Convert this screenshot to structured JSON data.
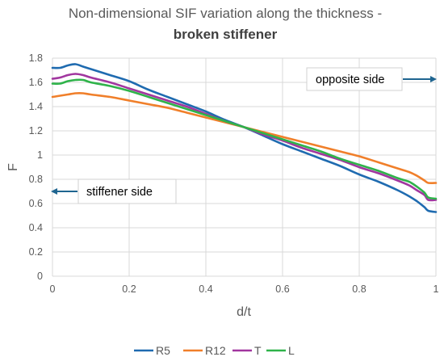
{
  "chart_data": {
    "type": "line",
    "title": "Non-dimensional SIF variation along the thickness -",
    "subtitle": "broken stiffener",
    "xlabel": "d/t",
    "ylabel": "F",
    "xlim": [
      0,
      1
    ],
    "ylim": [
      0,
      1.8
    ],
    "x_ticks": [
      "0",
      "0.2",
      "0.4",
      "0.6",
      "0.8",
      "1"
    ],
    "y_ticks": [
      "0",
      "0.2",
      "0.4",
      "0.6",
      "0.8",
      "1",
      "1.2",
      "1.4",
      "1.6",
      "1.8"
    ],
    "grid": true,
    "legend_position": "bottom",
    "series": [
      {
        "name": "R5",
        "color": "#1f6bb0",
        "points": [
          [
            0,
            1.72
          ],
          [
            0.02,
            1.72
          ],
          [
            0.04,
            1.74
          ],
          [
            0.06,
            1.75
          ],
          [
            0.08,
            1.73
          ],
          [
            0.1,
            1.71
          ],
          [
            0.15,
            1.66
          ],
          [
            0.2,
            1.61
          ],
          [
            0.25,
            1.54
          ],
          [
            0.3,
            1.48
          ],
          [
            0.35,
            1.42
          ],
          [
            0.4,
            1.36
          ],
          [
            0.45,
            1.29
          ],
          [
            0.5,
            1.23
          ],
          [
            0.55,
            1.16
          ],
          [
            0.6,
            1.09
          ],
          [
            0.65,
            1.03
          ],
          [
            0.7,
            0.97
          ],
          [
            0.75,
            0.91
          ],
          [
            0.8,
            0.84
          ],
          [
            0.85,
            0.78
          ],
          [
            0.9,
            0.71
          ],
          [
            0.93,
            0.66
          ],
          [
            0.95,
            0.62
          ],
          [
            0.97,
            0.57
          ],
          [
            0.98,
            0.54
          ],
          [
            1.0,
            0.53
          ]
        ]
      },
      {
        "name": "R12",
        "color": "#f07f2a",
        "points": [
          [
            0,
            1.48
          ],
          [
            0.02,
            1.49
          ],
          [
            0.04,
            1.5
          ],
          [
            0.06,
            1.51
          ],
          [
            0.08,
            1.51
          ],
          [
            0.1,
            1.5
          ],
          [
            0.15,
            1.48
          ],
          [
            0.2,
            1.45
          ],
          [
            0.25,
            1.42
          ],
          [
            0.3,
            1.39
          ],
          [
            0.35,
            1.35
          ],
          [
            0.4,
            1.31
          ],
          [
            0.45,
            1.27
          ],
          [
            0.5,
            1.23
          ],
          [
            0.55,
            1.19
          ],
          [
            0.6,
            1.15
          ],
          [
            0.65,
            1.11
          ],
          [
            0.7,
            1.07
          ],
          [
            0.75,
            1.03
          ],
          [
            0.8,
            0.99
          ],
          [
            0.85,
            0.94
          ],
          [
            0.9,
            0.89
          ],
          [
            0.93,
            0.86
          ],
          [
            0.95,
            0.83
          ],
          [
            0.97,
            0.79
          ],
          [
            0.98,
            0.77
          ],
          [
            1.0,
            0.77
          ]
        ]
      },
      {
        "name": "T",
        "color": "#a1369f",
        "points": [
          [
            0,
            1.63
          ],
          [
            0.02,
            1.64
          ],
          [
            0.04,
            1.66
          ],
          [
            0.06,
            1.67
          ],
          [
            0.08,
            1.66
          ],
          [
            0.1,
            1.64
          ],
          [
            0.15,
            1.6
          ],
          [
            0.2,
            1.55
          ],
          [
            0.25,
            1.5
          ],
          [
            0.3,
            1.45
          ],
          [
            0.35,
            1.4
          ],
          [
            0.4,
            1.34
          ],
          [
            0.45,
            1.28
          ],
          [
            0.5,
            1.23
          ],
          [
            0.55,
            1.17
          ],
          [
            0.6,
            1.12
          ],
          [
            0.65,
            1.06
          ],
          [
            0.7,
            1.01
          ],
          [
            0.75,
            0.96
          ],
          [
            0.8,
            0.9
          ],
          [
            0.85,
            0.85
          ],
          [
            0.9,
            0.79
          ],
          [
            0.93,
            0.75
          ],
          [
            0.95,
            0.71
          ],
          [
            0.97,
            0.67
          ],
          [
            0.98,
            0.63
          ],
          [
            1.0,
            0.63
          ]
        ]
      },
      {
        "name": "L",
        "color": "#2fb34a",
        "points": [
          [
            0,
            1.59
          ],
          [
            0.02,
            1.59
          ],
          [
            0.04,
            1.61
          ],
          [
            0.06,
            1.62
          ],
          [
            0.08,
            1.62
          ],
          [
            0.1,
            1.6
          ],
          [
            0.15,
            1.57
          ],
          [
            0.2,
            1.53
          ],
          [
            0.25,
            1.48
          ],
          [
            0.3,
            1.43
          ],
          [
            0.35,
            1.38
          ],
          [
            0.4,
            1.33
          ],
          [
            0.45,
            1.28
          ],
          [
            0.5,
            1.23
          ],
          [
            0.55,
            1.18
          ],
          [
            0.6,
            1.13
          ],
          [
            0.65,
            1.08
          ],
          [
            0.7,
            1.03
          ],
          [
            0.75,
            0.97
          ],
          [
            0.8,
            0.92
          ],
          [
            0.85,
            0.87
          ],
          [
            0.9,
            0.81
          ],
          [
            0.93,
            0.78
          ],
          [
            0.95,
            0.74
          ],
          [
            0.97,
            0.69
          ],
          [
            0.98,
            0.65
          ],
          [
            1.0,
            0.64
          ]
        ]
      }
    ],
    "annotations": [
      {
        "text": "opposite side",
        "arrow_target": [
          1.0,
          1.63
        ]
      },
      {
        "text": "stiffener side",
        "arrow_target": [
          0.0,
          0.7
        ]
      }
    ]
  }
}
